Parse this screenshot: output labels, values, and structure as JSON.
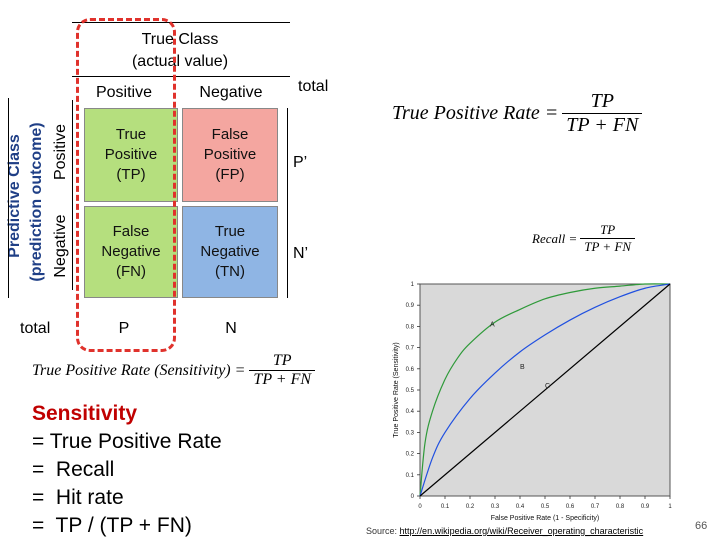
{
  "header": {
    "true_class": "True Class",
    "actual_value": "(actual value)",
    "positive": "Positive",
    "negative": "Negative",
    "total": "total"
  },
  "side": {
    "predictive_class": "Predictive Class",
    "prediction_outcome": "(prediction outcome)",
    "positive": "Positive",
    "negative": "Negative"
  },
  "matrix": {
    "tp": "True\nPositive\n(TP)",
    "fp": "False\nPositive\n(FP)",
    "fn": "False\nNegative\n(FN)",
    "tn": "True\nNegative\n(TN)",
    "p_prime": "P’",
    "n_prime": "N’",
    "total": "total",
    "p": "P",
    "n": "N"
  },
  "formulas": {
    "tpr_lhs": "True Positive Rate =",
    "tpr_num": "TP",
    "tpr_den": "TP + FN",
    "recall_lhs": "Recall =",
    "recall_num": "TP",
    "recall_den": "TP + FN",
    "sens_lhs": "True Positive Rate (Sensitivity) =",
    "sens_num": "TP",
    "sens_den": "TP + FN"
  },
  "sensitivity": {
    "title": "Sensitivity",
    "line1": "= True Positive Rate",
    "line2": "=  Recall",
    "line3": "=  Hit rate",
    "line4": "=  TP / (TP + FN)"
  },
  "colors": {
    "tp_cell": "#b5df7e",
    "fp_cell": "#f4a6a0",
    "fn_cell": "#b5df7e",
    "tn_cell": "#8fb5e4",
    "dashed": "#e0322c",
    "sensitivity_title": "#c00000",
    "curve_a": "#2f9a3a",
    "curve_b": "#2050e0",
    "diagonal": "#000000",
    "plot_bg": "#d9d9d9"
  },
  "chart_data": {
    "type": "line",
    "title": "",
    "xlabel": "False Positive Rate (1 - Specificity)",
    "ylabel": "True Positive Rate (Sensitivity)",
    "xlim": [
      0,
      1
    ],
    "ylim": [
      0,
      1
    ],
    "x_ticks": [
      "0",
      "0.1",
      "0.2",
      "0.3",
      "0.4",
      "0.5",
      "0.6",
      "0.7",
      "0.8",
      "0.9",
      "1"
    ],
    "y_ticks": [
      "0",
      "0.1",
      "0.2",
      "0.3",
      "0.4",
      "0.5",
      "0.6",
      "0.7",
      "0.8",
      "0.9",
      "1"
    ],
    "grid": false,
    "series": [
      {
        "name": "A",
        "color": "#2f9a3a",
        "x": [
          0,
          0.02,
          0.05,
          0.1,
          0.15,
          0.2,
          0.3,
          0.4,
          0.5,
          0.6,
          0.7,
          0.8,
          0.9,
          1
        ],
        "y": [
          0,
          0.25,
          0.4,
          0.55,
          0.65,
          0.72,
          0.82,
          0.88,
          0.93,
          0.96,
          0.98,
          0.99,
          1,
          1
        ]
      },
      {
        "name": "B",
        "color": "#2050e0",
        "x": [
          0,
          0.05,
          0.1,
          0.2,
          0.3,
          0.4,
          0.5,
          0.6,
          0.7,
          0.8,
          0.9,
          1
        ],
        "y": [
          0,
          0.18,
          0.3,
          0.46,
          0.58,
          0.68,
          0.76,
          0.83,
          0.89,
          0.94,
          0.98,
          1
        ]
      },
      {
        "name": "C",
        "color": "#000000",
        "x": [
          0,
          1
        ],
        "y": [
          0,
          1
        ]
      }
    ],
    "annotations": [
      {
        "text": "A",
        "x": 0.28,
        "y": 0.8
      },
      {
        "text": "B",
        "x": 0.4,
        "y": 0.6
      },
      {
        "text": "C",
        "x": 0.5,
        "y": 0.51
      }
    ]
  },
  "footer": {
    "source_label": "Source:",
    "source_url": "http://en.wikipedia.org/wiki/Receiver_operating_characteristic",
    "page_number": "66"
  }
}
